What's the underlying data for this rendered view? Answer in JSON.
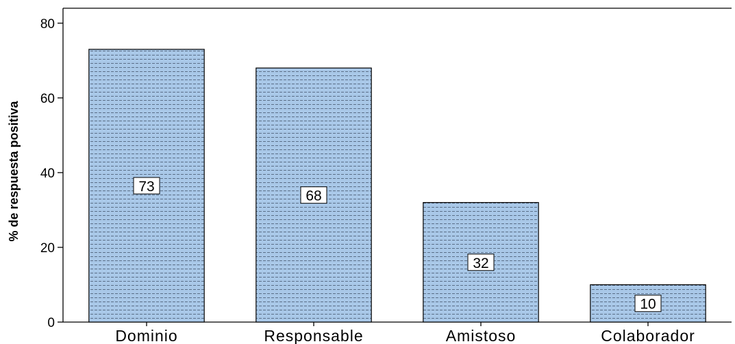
{
  "chart_data": {
    "type": "bar",
    "categories": [
      "Dominio",
      "Responsable",
      "Amistoso",
      "Colaborador"
    ],
    "values": [
      73,
      68,
      32,
      10
    ],
    "data_labels": [
      "73",
      "68",
      "32",
      "10"
    ],
    "title": "",
    "xlabel": "",
    "ylabel": "% de respuesta positiva",
    "ylim": [
      0,
      84
    ],
    "yticks": [
      0,
      20,
      40,
      60,
      80
    ],
    "ytick_labels": [
      "0",
      "20",
      "40",
      "60",
      "80"
    ],
    "grid": false,
    "legend": "none",
    "colors": {
      "bar_fill": "#a9c8e8",
      "bar_stipple": "#5b6f88",
      "bar_stroke": "#000000",
      "axis": "#000000"
    }
  }
}
